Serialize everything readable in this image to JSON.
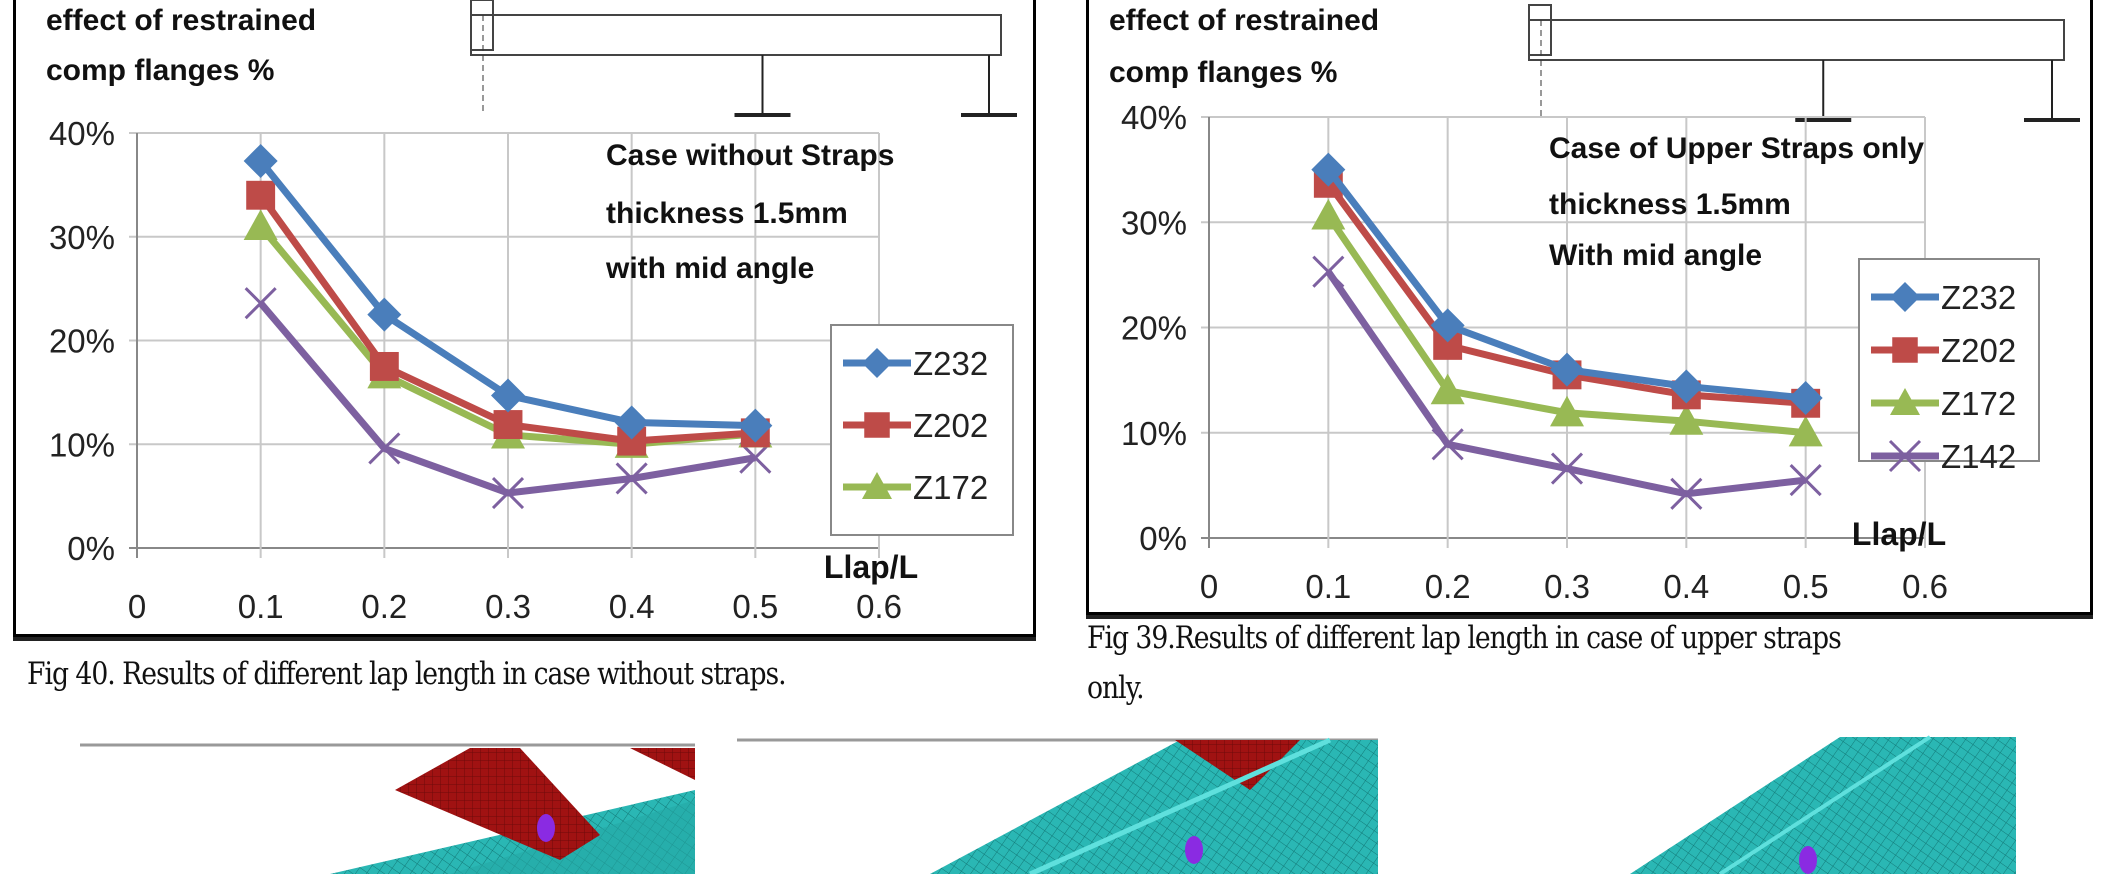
{
  "figures": [
    {
      "caption": "Fig 40. Results of different lap length in case without straps.",
      "caption_lines": [
        "Fig 40. Results of different lap length in case without straps."
      ]
    },
    {
      "caption": "Fig 39.Results of different lap length in case of upper straps only.",
      "caption_lines": [
        "Fig 39.Results of different lap length in case of upper straps",
        "only."
      ]
    }
  ],
  "chart_data": [
    {
      "type": "line",
      "ylabel_lines": [
        "effect of  restrained",
        "comp flanges %"
      ],
      "xlabel": "Llap/L",
      "annotation_lines": [
        "Case without Straps",
        "thickness 1.5mm",
        "with mid angle"
      ],
      "x": [
        0.1,
        0.2,
        0.3,
        0.4,
        0.5
      ],
      "xlim": [
        0,
        0.6
      ],
      "ylim": [
        0,
        40
      ],
      "x_ticks": [
        "0",
        "0.1",
        "0.2",
        "0.3",
        "0.4",
        "0.5",
        "0.6"
      ],
      "y_ticks": [
        "0%",
        "10%",
        "20%",
        "30%",
        "40%"
      ],
      "grid": true,
      "legend": "right",
      "series": [
        {
          "name": "Z232",
          "values": [
            37.3,
            22.5,
            14.7,
            12.1,
            11.8
          ],
          "color": "#4a7ebb",
          "marker": "diamond"
        },
        {
          "name": "Z202",
          "values": [
            34.0,
            17.5,
            11.9,
            10.3,
            11.1
          ],
          "color": "#be4b48",
          "marker": "square"
        },
        {
          "name": "Z172",
          "values": [
            31.0,
            16.7,
            10.9,
            10.0,
            11.0
          ],
          "color": "#98b954",
          "marker": "triangle"
        },
        {
          "values": [
            23.6,
            9.6,
            5.3,
            6.7,
            8.7
          ],
          "color": "#7d60a0",
          "marker": "x"
        }
      ]
    },
    {
      "type": "line",
      "ylabel_lines": [
        "effect of  restrained",
        "comp flanges %"
      ],
      "xlabel": "Llap/L",
      "annotation_lines": [
        "Case of Upper Straps  only",
        "thickness 1.5mm",
        "With mid angle"
      ],
      "x": [
        0.1,
        0.2,
        0.3,
        0.4,
        0.5
      ],
      "xlim": [
        0,
        0.6
      ],
      "ylim": [
        0,
        40
      ],
      "x_ticks": [
        "0",
        "0.1",
        "0.2",
        "0.3",
        "0.4",
        "0.5",
        "0.6"
      ],
      "y_ticks": [
        "0%",
        "10%",
        "20%",
        "30%",
        "40%"
      ],
      "grid": true,
      "legend": "right",
      "series": [
        {
          "name": "Z232",
          "values": [
            35.0,
            20.2,
            16.0,
            14.4,
            13.3
          ],
          "color": "#4a7ebb",
          "marker": "diamond"
        },
        {
          "name": "Z202",
          "values": [
            33.7,
            18.3,
            15.5,
            13.6,
            12.8
          ],
          "color": "#be4b48",
          "marker": "square"
        },
        {
          "name": "Z172",
          "values": [
            30.6,
            14.0,
            11.9,
            11.1,
            10.0
          ],
          "color": "#98b954",
          "marker": "triangle"
        },
        {
          "name": "Z142",
          "values": [
            25.3,
            8.9,
            6.6,
            4.2,
            5.5
          ],
          "color": "#7d60a0",
          "marker": "x"
        }
      ]
    }
  ],
  "fem_images": {
    "mesh_color": "#2ab7b4",
    "strap_color": "#a01212",
    "bolt_color": "#8a2be2"
  }
}
